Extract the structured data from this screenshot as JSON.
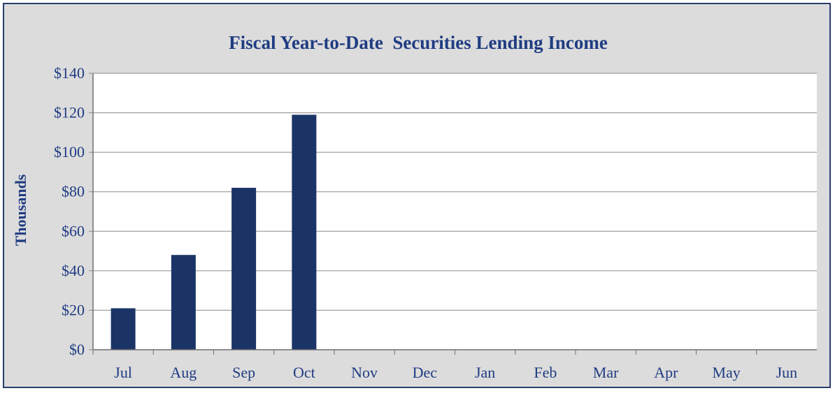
{
  "chart_data": {
    "type": "bar",
    "title": "Fiscal Year-to-Date  Securities Lending Income",
    "xlabel": "",
    "ylabel": "Thousands",
    "categories": [
      "Jul",
      "Aug",
      "Sep",
      "Oct",
      "Nov",
      "Dec",
      "Jan",
      "Feb",
      "Mar",
      "Apr",
      "May",
      "Jun"
    ],
    "values": [
      21,
      48,
      82,
      119,
      null,
      null,
      null,
      null,
      null,
      null,
      null,
      null
    ],
    "ylim": [
      0,
      140
    ],
    "yticks": [
      0,
      20,
      40,
      60,
      80,
      100,
      120,
      140
    ],
    "ytick_labels": [
      "$0",
      "$20",
      "$40",
      "$60",
      "$80",
      "$100",
      "$120",
      "$140"
    ],
    "grid": true,
    "legend": "none",
    "colors": {
      "bar": "#1b3466",
      "text": "#1f3c82",
      "frame": "#2a3e6e",
      "plot_background": "#ffffff",
      "chart_background": "#dcdcdc",
      "gridline": "#8a8a8a"
    }
  }
}
